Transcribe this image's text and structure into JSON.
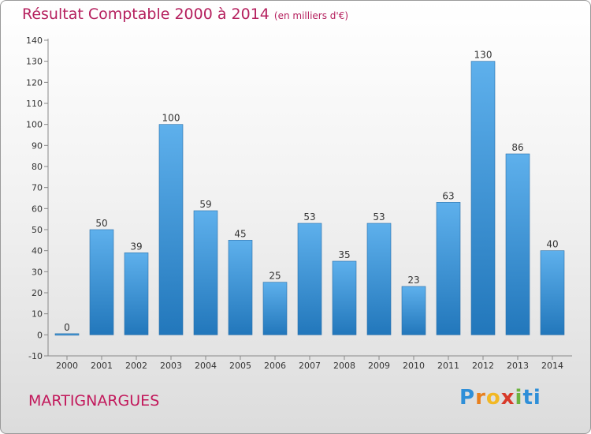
{
  "chart_data": {
    "type": "bar",
    "title": "Résultat Comptable 2000 à 2014",
    "subtitle": "(en milliers d'€)",
    "categories": [
      "2000",
      "2001",
      "2002",
      "2003",
      "2004",
      "2005",
      "2006",
      "2007",
      "2008",
      "2009",
      "2010",
      "2011",
      "2012",
      "2013",
      "2014"
    ],
    "values": [
      0,
      50,
      39,
      100,
      59,
      45,
      25,
      53,
      35,
      53,
      23,
      63,
      130,
      86,
      40
    ],
    "ylim": [
      -10,
      140
    ],
    "yticks": [
      -10,
      0,
      10,
      20,
      30,
      40,
      50,
      60,
      70,
      80,
      90,
      100,
      110,
      120,
      130,
      140
    ],
    "grid": false,
    "bar_color": "#3d95d6"
  },
  "footer": {
    "commune": "MARTIGNARGUES",
    "logo_text": "Proxiti"
  },
  "colors": {
    "title": "#b5205e",
    "commune": "#c2185b"
  }
}
